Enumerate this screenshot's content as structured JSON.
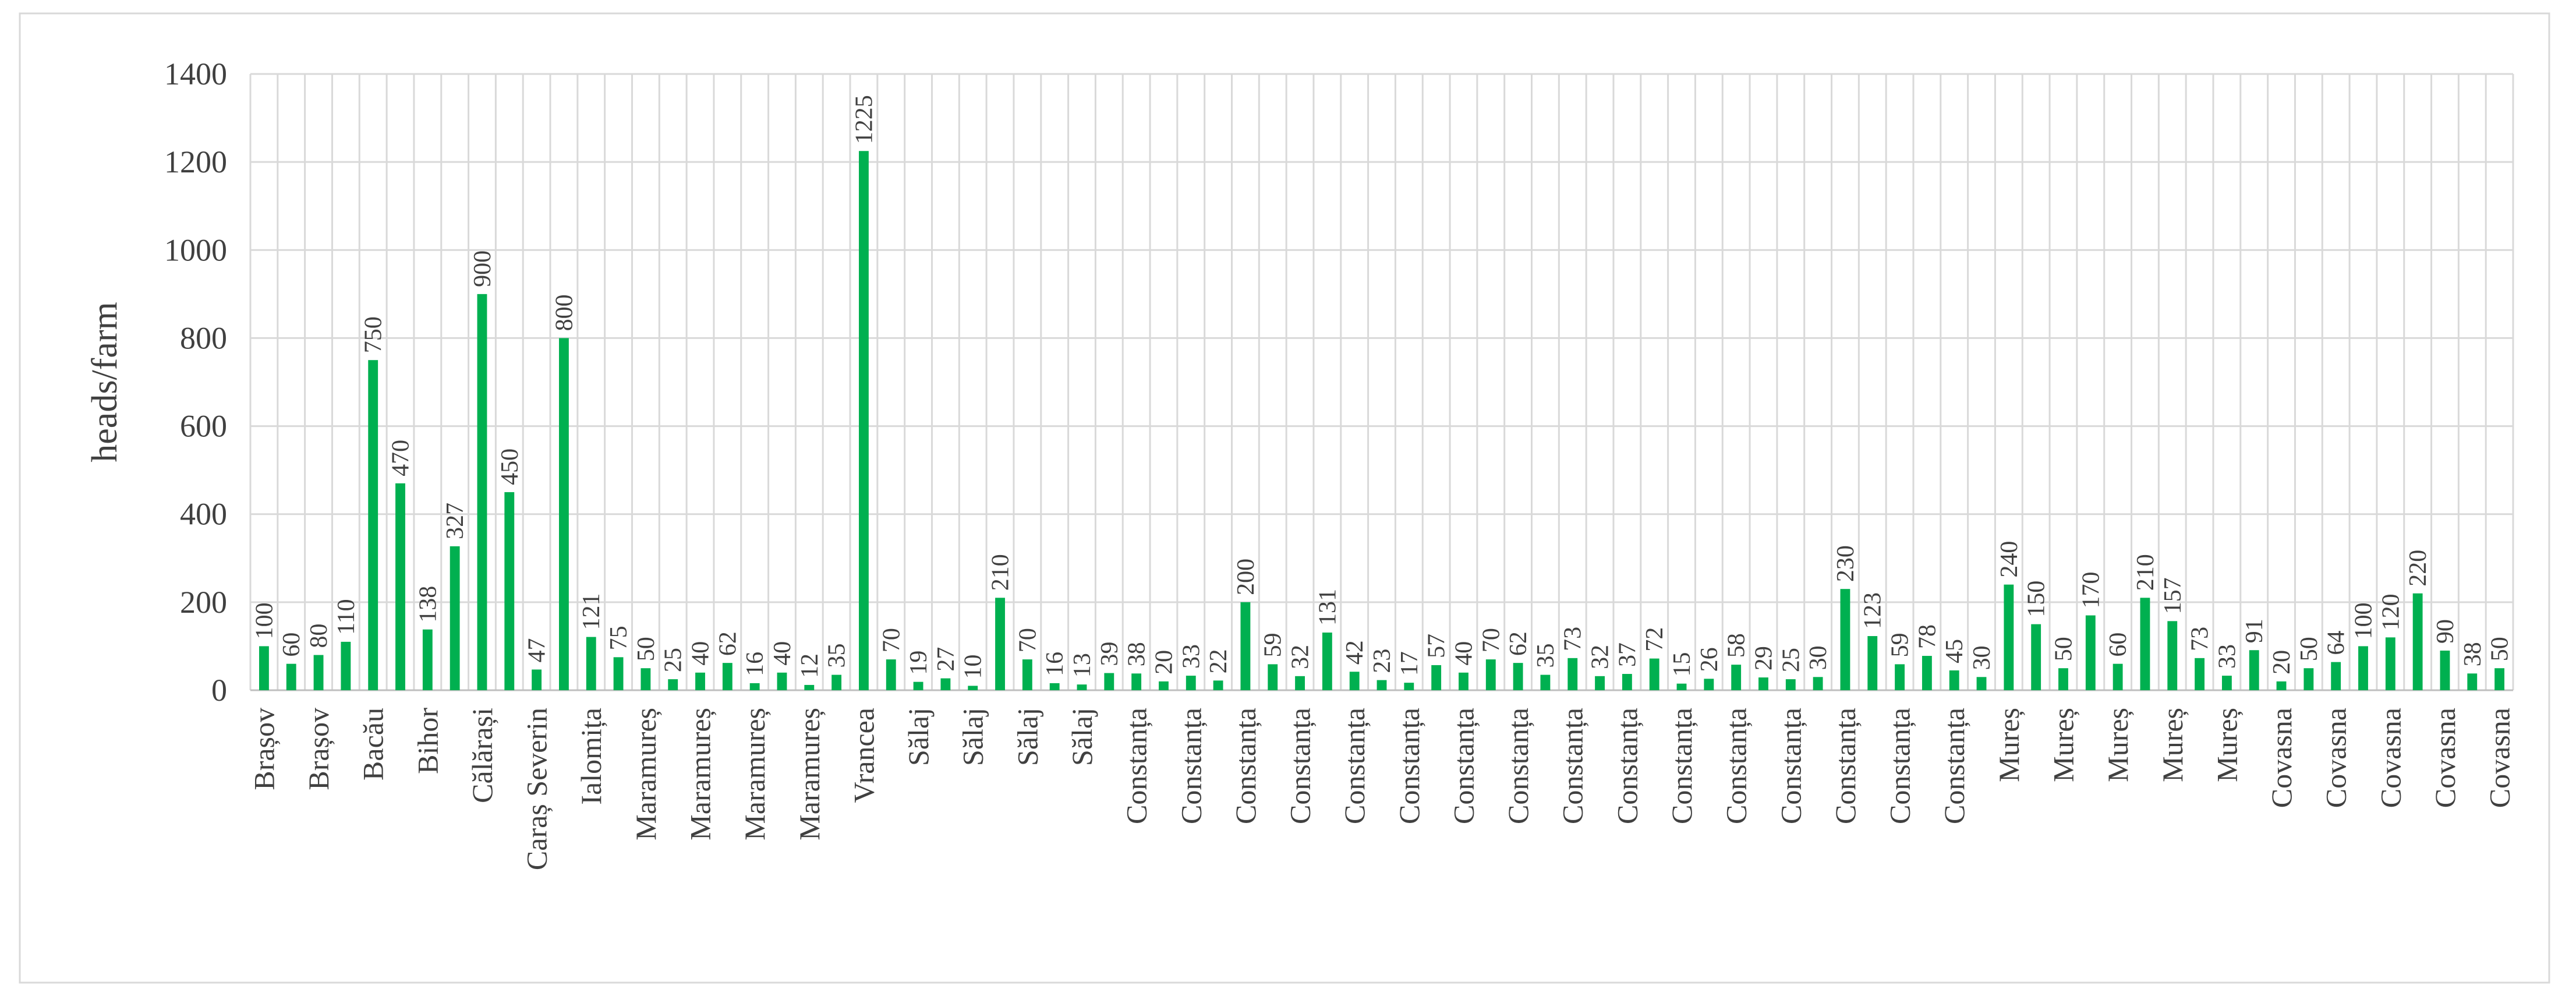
{
  "chart_data": {
    "type": "bar",
    "y_label": "heads/farm",
    "categories": [
      "Brașov",
      null,
      "Brașov",
      null,
      "Bacău",
      null,
      "Bihor",
      null,
      "Călărași",
      null,
      "Caraș Severin",
      null,
      "Ialomița",
      null,
      "Maramureș",
      null,
      "Maramureș",
      null,
      "Maramureș",
      null,
      "Maramureș",
      null,
      "Vrancea",
      null,
      "Sălaj",
      null,
      "Sălaj",
      null,
      "Sălaj",
      null,
      "Sălaj",
      null,
      "Constanța",
      null,
      "Constanța",
      null,
      "Constanța",
      null,
      "Constanța",
      null,
      "Constanța",
      null,
      "Constanța",
      null,
      "Constanța",
      null,
      "Constanța",
      null,
      "Constanța",
      null,
      "Constanța",
      null,
      "Constanța",
      null,
      "Constanța",
      null,
      "Constanța",
      null,
      "Constanța",
      null,
      "Constanța",
      null,
      "Constanța",
      null,
      "Mureș",
      null,
      "Mureș",
      null,
      "Mureș",
      null,
      "Mureș",
      null,
      "Mureș",
      null,
      "Covasna",
      null,
      "Covasna",
      null,
      "Covasna",
      null,
      "Covasna",
      null,
      "Covasna"
    ],
    "values": [
      100,
      60,
      80,
      110,
      750,
      470,
      138,
      327,
      900,
      450,
      47,
      800,
      121,
      75,
      50,
      25,
      40,
      62,
      16,
      40,
      12,
      35,
      1225,
      70,
      19,
      27,
      10,
      210,
      70,
      16,
      13,
      39,
      38,
      20,
      33,
      22,
      200,
      59,
      32,
      131,
      42,
      23,
      17,
      57,
      40,
      70,
      62,
      35,
      73,
      32,
      37,
      72,
      15,
      26,
      58,
      29,
      25,
      30,
      230,
      123,
      59,
      78,
      45,
      30,
      240,
      150,
      50,
      170,
      60,
      210,
      157,
      73,
      33,
      91,
      20,
      50,
      64,
      100,
      120,
      220,
      90,
      38,
      50
    ],
    "color": "#00b050",
    "ylim": [
      0,
      1400
    ],
    "yticks": [
      0,
      200,
      400,
      600,
      800,
      1000,
      1200,
      1400
    ],
    "grid": true
  }
}
